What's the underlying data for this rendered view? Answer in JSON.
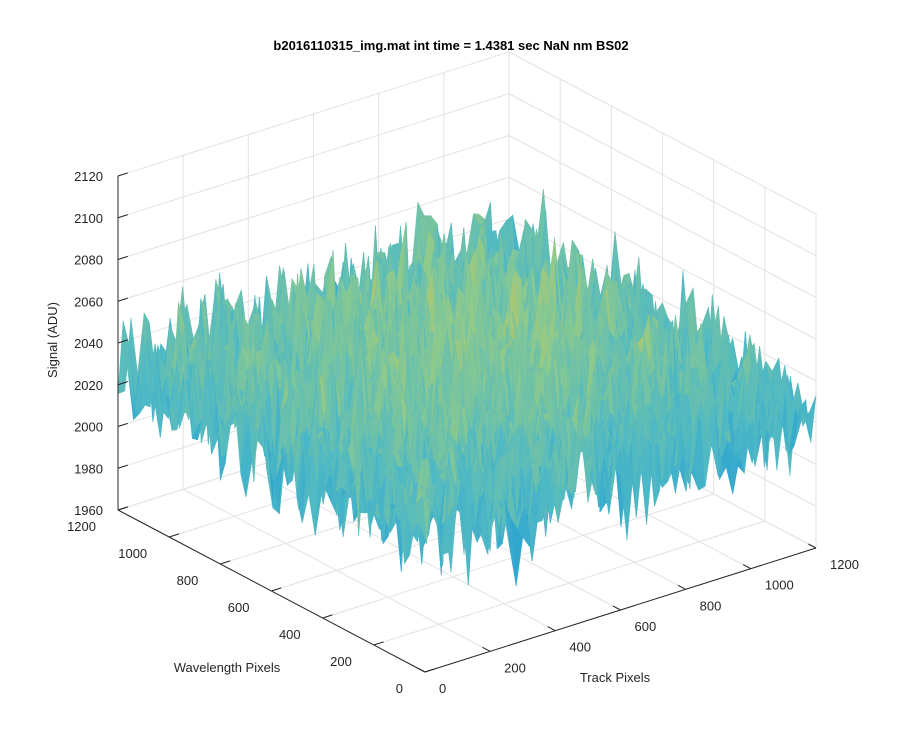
{
  "chart_data": {
    "type": "surface",
    "title": "b2016110315_img.mat int time = 1.4381 sec  NaN nm BS02",
    "xlabel": "Track Pixels",
    "ylabel": "Wavelength Pixels",
    "zlabel": "Signal (ADU)",
    "xlim": [
      0,
      1200
    ],
    "ylim": [
      0,
      1200
    ],
    "zlim": [
      1960,
      2120
    ],
    "xticks": [
      "0",
      "200",
      "400",
      "600",
      "800",
      "1000",
      "1200"
    ],
    "yticks": [
      "0",
      "200",
      "400",
      "600",
      "800",
      "1000",
      "1200"
    ],
    "zticks": [
      "1960",
      "1980",
      "2000",
      "2020",
      "2040",
      "2060",
      "2080",
      "2100",
      "2120"
    ],
    "grid": true,
    "surface": {
      "x_range": [
        0,
        1200
      ],
      "y_range": [
        0,
        1200
      ],
      "z_range": [
        1965,
        2115
      ],
      "z_typical": 2035,
      "colormap": [
        "#0072bd",
        "#1e9ad6",
        "#4fb9c5",
        "#8fca8b",
        "#d8c14f",
        "#f2c230"
      ]
    }
  }
}
